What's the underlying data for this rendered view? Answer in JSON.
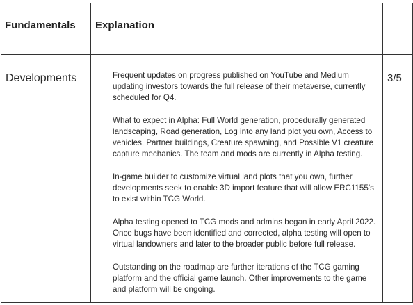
{
  "header": {
    "col1": "Fundamentals",
    "col2": "Explanation",
    "col3": ""
  },
  "row": {
    "label": "Developments",
    "score": "3/5",
    "bullet_marker": "·",
    "bullets": [
      "Frequent updates on progress published on YouTube and Medium updating investors towards the full release of their metaverse, currently scheduled for Q4.",
      "What to expect in Alpha: Full World generation, procedurally generated landscaping, Road generation, Log into any land plot you own, Access to vehicles, Partner buildings, Creature spawning, and Possible V1 creature capture mechanics. The team and mods are currently in Alpha testing.",
      "In-game builder to customize virtual land plots that you own, further developments seek to enable 3D import feature that will allow ERC1155’s to exist within TCG World.",
      "Alpha testing opened to TCG mods and admins began in early April 2022. Once bugs have been identified and corrected, alpha testing will open to virtual landowners and later to the broader public before full release.",
      "Outstanding on the roadmap are further iterations of the TCG gaming platform and the official game launch. Other improvements to the game and platform will be ongoing."
    ]
  }
}
